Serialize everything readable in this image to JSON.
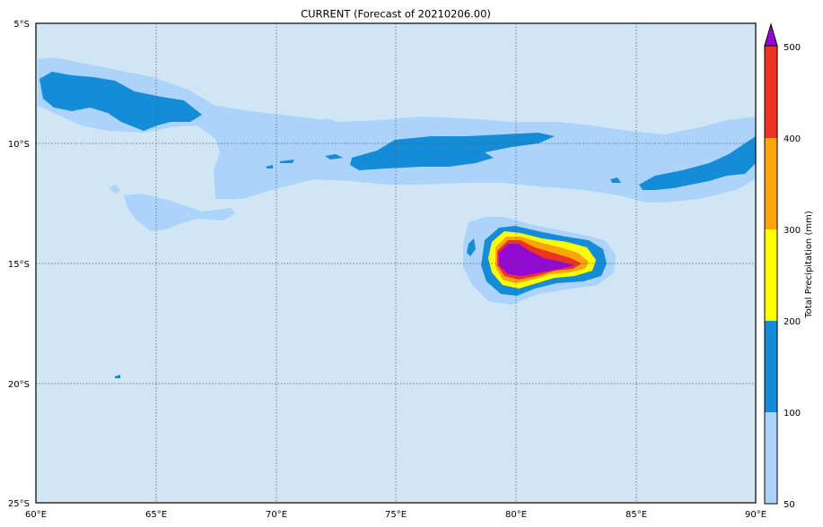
{
  "title": "CURRENT (Forecast of 20210206.00)",
  "map": {
    "lon_range": [
      60,
      90
    ],
    "lat_range": [
      -25,
      -5
    ],
    "x_ticks": [
      "60°E",
      "65°E",
      "70°E",
      "75°E",
      "80°E",
      "85°E",
      "90°E"
    ],
    "y_ticks": [
      "5°S",
      "10°S",
      "15°S",
      "20°S",
      "25°S"
    ],
    "gridlines": true,
    "background_color": "#d0e6f5"
  },
  "colorbar": {
    "label": "Total Precipitation (mm)",
    "levels": [
      "50",
      "100",
      "200",
      "300",
      "400",
      "500"
    ],
    "colors": [
      "#acd4fa",
      "#158cd8",
      "#fefe04",
      "#fca40c",
      "#ec3424"
    ],
    "extend_max_color": "#9408d4",
    "extend": "max"
  }
}
